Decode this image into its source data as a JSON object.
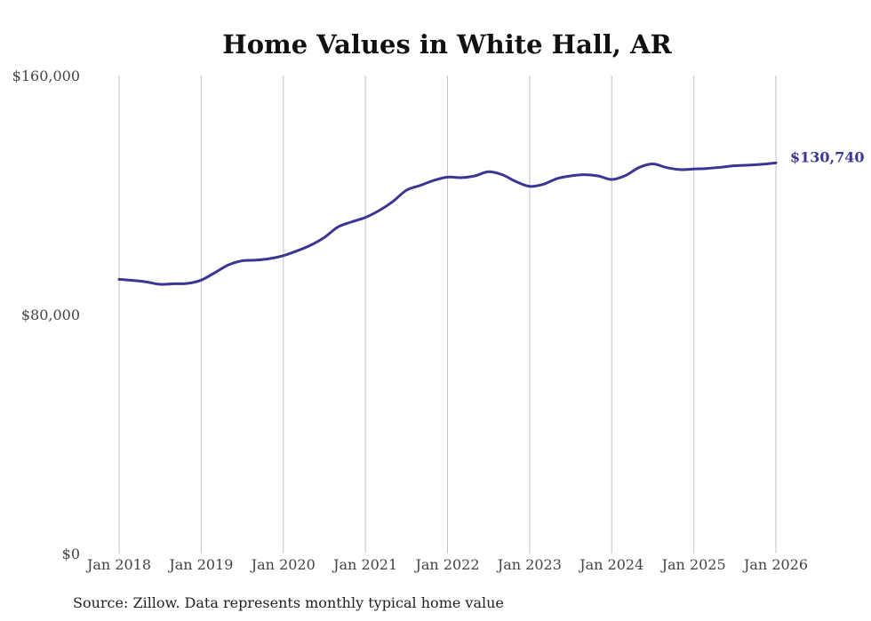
{
  "chart_data": {
    "type": "line",
    "title": "Home Values in White Hall, AR",
    "xlabel": "",
    "ylabel": "",
    "ylim": [
      0,
      160000
    ],
    "xlim": [
      "2018-01",
      "2026-01"
    ],
    "grid": {
      "vertical": true,
      "horizontal": false
    },
    "y_ticks": [
      {
        "value": 0,
        "label": "$0"
      },
      {
        "value": 80000,
        "label": "$80,000"
      },
      {
        "value": 160000,
        "label": "$160,000"
      }
    ],
    "x_ticks": [
      {
        "value": "2018-01",
        "label": "Jan 2018"
      },
      {
        "value": "2019-01",
        "label": "Jan 2019"
      },
      {
        "value": "2020-01",
        "label": "Jan 2020"
      },
      {
        "value": "2021-01",
        "label": "Jan 2021"
      },
      {
        "value": "2022-01",
        "label": "Jan 2022"
      },
      {
        "value": "2023-01",
        "label": "Jan 2023"
      },
      {
        "value": "2024-01",
        "label": "Jan 2024"
      },
      {
        "value": "2025-01",
        "label": "Jan 2025"
      },
      {
        "value": "2026-01",
        "label": "Jan 2026"
      }
    ],
    "series": [
      {
        "color": "#3b3593",
        "end_label": "$130,740",
        "points": [
          [
            "2018-01",
            91800
          ],
          [
            "2018-03",
            91400
          ],
          [
            "2018-05",
            90900
          ],
          [
            "2018-07",
            90100
          ],
          [
            "2018-09",
            90300
          ],
          [
            "2018-11",
            90400
          ],
          [
            "2019-01",
            91500
          ],
          [
            "2019-03",
            94000
          ],
          [
            "2019-05",
            96600
          ],
          [
            "2019-07",
            98000
          ],
          [
            "2019-09",
            98200
          ],
          [
            "2019-11",
            98700
          ],
          [
            "2020-01",
            99700
          ],
          [
            "2020-03",
            101300
          ],
          [
            "2020-05",
            103200
          ],
          [
            "2020-07",
            105800
          ],
          [
            "2020-09",
            109300
          ],
          [
            "2020-11",
            111000
          ],
          [
            "2021-01",
            112500
          ],
          [
            "2021-03",
            114800
          ],
          [
            "2021-05",
            117800
          ],
          [
            "2021-07",
            121600
          ],
          [
            "2021-09",
            123200
          ],
          [
            "2021-11",
            124900
          ],
          [
            "2022-01",
            126000
          ],
          [
            "2022-03",
            125800
          ],
          [
            "2022-05",
            126400
          ],
          [
            "2022-07",
            127800
          ],
          [
            "2022-09",
            126800
          ],
          [
            "2022-11",
            124500
          ],
          [
            "2023-01",
            122900
          ],
          [
            "2023-03",
            123600
          ],
          [
            "2023-05",
            125500
          ],
          [
            "2023-07",
            126400
          ],
          [
            "2023-09",
            126800
          ],
          [
            "2023-11",
            126400
          ],
          [
            "2024-01",
            125200
          ],
          [
            "2024-03",
            126500
          ],
          [
            "2024-05",
            129200
          ],
          [
            "2024-07",
            130400
          ],
          [
            "2024-09",
            129200
          ],
          [
            "2024-11",
            128500
          ],
          [
            "2025-01",
            128700
          ],
          [
            "2025-03",
            128900
          ],
          [
            "2025-05",
            129300
          ],
          [
            "2025-07",
            129800
          ],
          [
            "2025-09",
            130000
          ],
          [
            "2025-11",
            130300
          ],
          [
            "2026-01",
            130740
          ]
        ]
      }
    ]
  },
  "footer": {
    "source": "Source: Zillow. Data represents monthly typical home value"
  }
}
